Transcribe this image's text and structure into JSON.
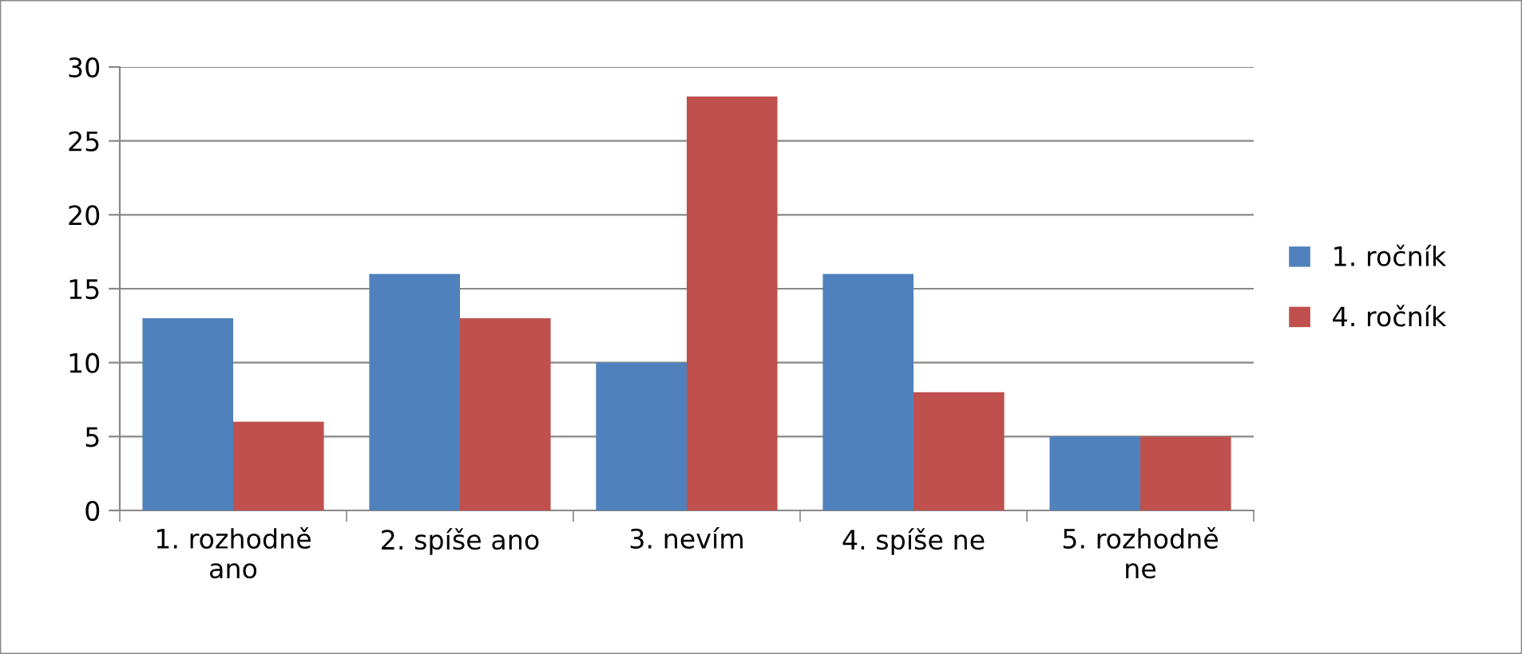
{
  "chart_data": {
    "type": "bar",
    "categories": [
      "1. rozhodně\nano",
      "2. spíše ano",
      "3. nevím",
      "4. spíše ne",
      "5. rozhodně\nne"
    ],
    "series": [
      {
        "name": "1. ročník",
        "color": "#4f81bd",
        "values": [
          13,
          16,
          10,
          16,
          5
        ]
      },
      {
        "name": "4. ročník",
        "color": "#c0504d",
        "values": [
          6,
          13,
          28,
          8,
          5
        ]
      }
    ],
    "ylim": [
      0,
      30
    ],
    "yticks": [
      0,
      5,
      10,
      15,
      20,
      25,
      30
    ],
    "grid": "y",
    "legend": "right"
  }
}
